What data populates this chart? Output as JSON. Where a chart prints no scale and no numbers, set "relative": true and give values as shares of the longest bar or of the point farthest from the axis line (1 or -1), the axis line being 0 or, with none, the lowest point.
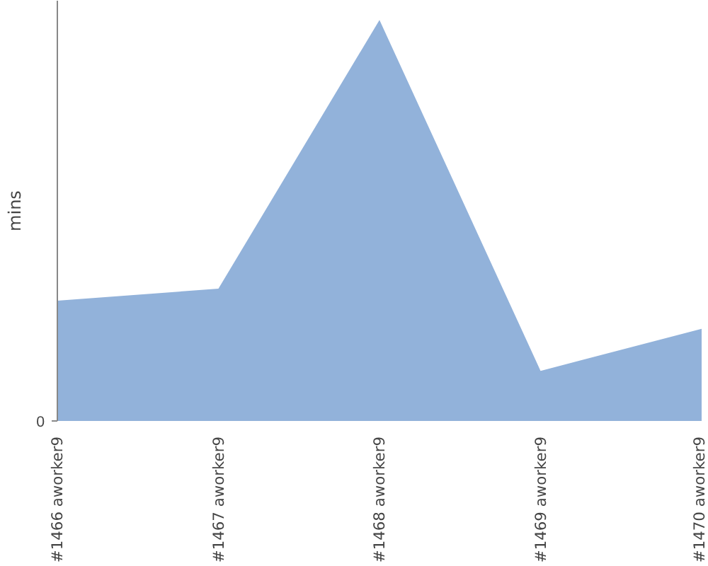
{
  "chart_data": {
    "type": "area",
    "relative": true,
    "ylabel": "mins",
    "annotations": [
      "0"
    ],
    "categories": [
      "#1466 aworker9",
      "#1467 aworker9",
      "#1468 aworker9",
      "#1469 aworker9",
      "#1470 aworker9"
    ],
    "series": [
      {
        "color": "#92b2da",
        "values": [
          0.3,
          0.33,
          1,
          0.125,
          0.23
        ]
      }
    ],
    "marker": "none"
  }
}
